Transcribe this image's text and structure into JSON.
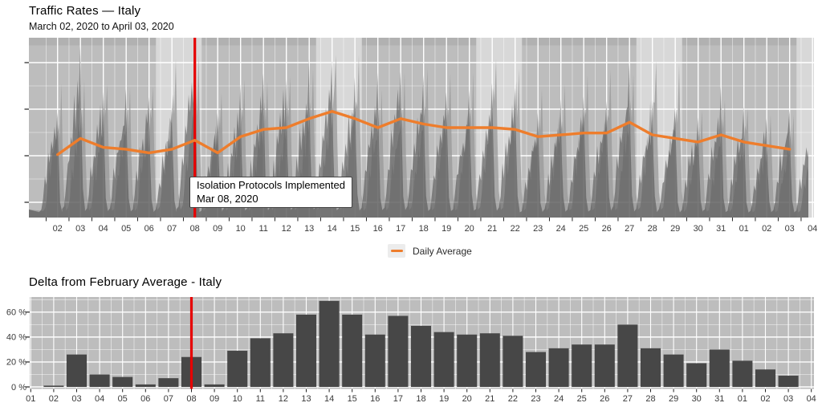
{
  "colors": {
    "plot_bg": "#bdbdbd",
    "weekend_band": "#d8d8d8",
    "weekday_strip": "#b1b1b1",
    "grid": "#ffffff",
    "area_observed": "rgba(82,82,82,0.60)",
    "area_baseline": "rgba(150,150,150,0.72)",
    "daily_average": "#ee7d2c",
    "event_line": "#e60000",
    "bar": "#474747",
    "tick_text": "#3a3a3a"
  },
  "chart_data": [
    {
      "type": "area+line",
      "title": "Traffic Rates — Italy",
      "subtitle": "March 02, 2020 to April 03, 2020",
      "x_tick_labels": [
        "02",
        "03",
        "04",
        "05",
        "06",
        "07",
        "08",
        "09",
        "10",
        "11",
        "12",
        "13",
        "14",
        "15",
        "16",
        "17",
        "18",
        "19",
        "20",
        "21",
        "22",
        "23",
        "24",
        "25",
        "26",
        "27",
        "28",
        "29",
        "30",
        "31",
        "01",
        "02",
        "03",
        "04"
      ],
      "y_axis": {
        "labels_shown": false,
        "major_ticks": 4,
        "units": "relative traffic volume (0-100 = % of plot height)"
      },
      "weekend_bands": [
        "Mar 07-08",
        "Mar 14-15",
        "Mar 21-22",
        "Mar 28-29",
        "Apr 04"
      ],
      "weekend_sat_indices": [
        5,
        12,
        19,
        26,
        33
      ],
      "event_line": {
        "x_label": "08",
        "x_index": 6,
        "date": "Mar 08, 2020",
        "annotation": {
          "line1": "Isolation Protocols Implemented",
          "line2": "Mar 08, 2020"
        }
      },
      "legend": {
        "label": "Daily Average",
        "position": "bottom center"
      },
      "series": [
        {
          "name": "Daily Average",
          "type": "line",
          "x": [
            "02",
            "03",
            "04",
            "05",
            "06",
            "07",
            "08",
            "09",
            "10",
            "11",
            "12",
            "13",
            "14",
            "15",
            "16",
            "17",
            "18",
            "19",
            "20",
            "21",
            "22",
            "23",
            "24",
            "25",
            "26",
            "27",
            "28",
            "29",
            "30",
            "31",
            "01",
            "02",
            "03"
          ],
          "values": [
            35,
            44,
            39,
            38,
            36,
            38,
            43,
            36,
            45,
            49,
            50,
            55,
            59,
            55,
            50,
            55,
            52,
            50,
            50,
            50,
            49,
            45,
            46,
            47,
            47,
            53,
            46,
            44,
            42,
            46,
            42,
            40,
            38
          ],
          "note": "estimated, relative scale 0-100 (y axis unlabeled)"
        },
        {
          "name": "Hourly traffic (observed)",
          "type": "area",
          "daily_peaks": [
            60,
            95,
            72,
            72,
            68,
            62,
            94,
            60,
            76,
            80,
            80,
            85,
            90,
            80,
            78,
            84,
            82,
            72,
            72,
            78,
            75,
            58,
            64,
            66,
            67,
            84,
            66,
            61,
            58,
            74,
            60,
            55,
            62,
            58
          ],
          "note": "estimated relative daily peak heights 0-100; last value is partial day Apr 04"
        },
        {
          "name": "Hourly traffic (baseline)",
          "type": "area",
          "daily_peaks": [
            72,
            76,
            75,
            75,
            74,
            88,
            88,
            72,
            76,
            78,
            78,
            80,
            92,
            88,
            74,
            79,
            80,
            79,
            79,
            87,
            85,
            74,
            77,
            79,
            79,
            81,
            88,
            86,
            62,
            66,
            62,
            58,
            58,
            55
          ],
          "note": "estimated relative daily peak heights 0-100 of lighter background series"
        }
      ]
    },
    {
      "type": "bar",
      "title": "Delta from February Average - Italy",
      "categories": [
        "01",
        "02",
        "03",
        "04",
        "05",
        "06",
        "07",
        "08",
        "09",
        "10",
        "11",
        "12",
        "13",
        "14",
        "15",
        "16",
        "17",
        "18",
        "19",
        "20",
        "21",
        "22",
        "23",
        "24",
        "25",
        "26",
        "27",
        "28",
        "29",
        "30",
        "31",
        "01",
        "02",
        "03",
        "04"
      ],
      "values": [
        null,
        1,
        26,
        10,
        8,
        2,
        7,
        24,
        2,
        29,
        39,
        43,
        58,
        69,
        58,
        42,
        57,
        49,
        44,
        42,
        43,
        41,
        28,
        31,
        34,
        34,
        50,
        31,
        26,
        19,
        30,
        21,
        14,
        9,
        null
      ],
      "unit": "%",
      "y_tick_labels": [
        "0 %",
        "20 %",
        "40 %",
        "60 %"
      ],
      "y_tick_values": [
        0,
        20,
        40,
        60
      ],
      "ylim": [
        0,
        72
      ],
      "grid": true,
      "event_line": {
        "x_label": "08",
        "x_index": 7
      }
    }
  ]
}
